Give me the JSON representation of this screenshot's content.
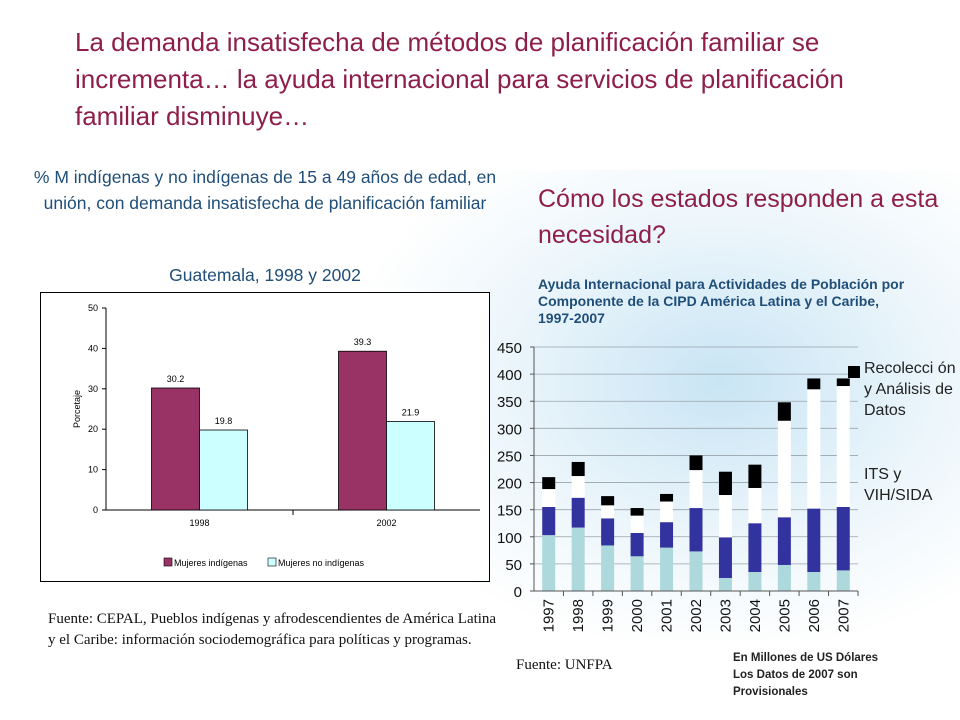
{
  "slide": {
    "title": "La demanda insatisfecha de métodos de planificación familiar se incrementa… la ayuda internacional para servicios de planificación familiar disminuye…",
    "left_subtitle": "% M indígenas y no indígenas de 15 a 49 años de edad, en unión, con demanda insatisfecha de planificación familiar",
    "left_country": "Guatemala,  1998 y 2002",
    "right_question": "Cómo los estados responden a esta necesidad?",
    "right_chart_title": "Ayuda Internacional para Actividades de Población por Componente de la CIPD América Latina y el Caribe, 1997-2007",
    "left_source": "Fuente: CEPAL, Pueblos indígenas y afrodescendientes de América Latina y el Caribe: información sociodemográfica para políticas y programas.",
    "right_source": "Fuente: UNFPA",
    "right_footnote_1": "En Millones de US Dólares",
    "right_footnote_2": "Los Datos de 2007 son Provisionales",
    "legend_recoleccion": "Recolecci ón y Análisis de Datos",
    "legend_its": "ITS y VIH/SIDA"
  },
  "chart_data": [
    {
      "type": "bar",
      "categories": [
        "1998",
        "2002"
      ],
      "series": [
        {
          "name": "Mujeres indígenas",
          "values": [
            30.2,
            39.3
          ],
          "color": "#993366"
        },
        {
          "name": "Mujeres no indígenas",
          "values": [
            19.8,
            21.9
          ],
          "color": "#ccffff"
        }
      ],
      "ylabel": "Porcetaje",
      "ylim": [
        0,
        50
      ],
      "yticks": [
        0,
        10,
        20,
        30,
        40,
        50
      ],
      "grid": false,
      "data_labels": true,
      "legend": "bottom"
    },
    {
      "type": "bar",
      "stacked": true,
      "categories": [
        "1997",
        "1998",
        "1999",
        "2000",
        "2001",
        "2002",
        "2003",
        "2004",
        "2005",
        "2006",
        "2007"
      ],
      "series": [
        {
          "values": [
            103,
            117,
            84,
            64,
            80,
            73,
            24,
            35,
            48,
            35,
            38
          ],
          "color": "#add8dc"
        },
        {
          "values": [
            52,
            55,
            50,
            43,
            47,
            80,
            75,
            90,
            88,
            117,
            117
          ],
          "color": "#3333a0"
        },
        {
          "values": [
            33,
            40,
            24,
            32,
            38,
            70,
            78,
            65,
            178,
            220,
            223
          ],
          "color": "#ffffff"
        },
        {
          "values": [
            22,
            26,
            17,
            14,
            14,
            27,
            43,
            43,
            34,
            20,
            14
          ],
          "color": "#000000"
        }
      ],
      "ylim": [
        0,
        450
      ],
      "yticks": [
        0,
        50,
        100,
        150,
        200,
        250,
        300,
        350,
        400,
        450
      ],
      "grid": true,
      "legend": "right"
    }
  ]
}
